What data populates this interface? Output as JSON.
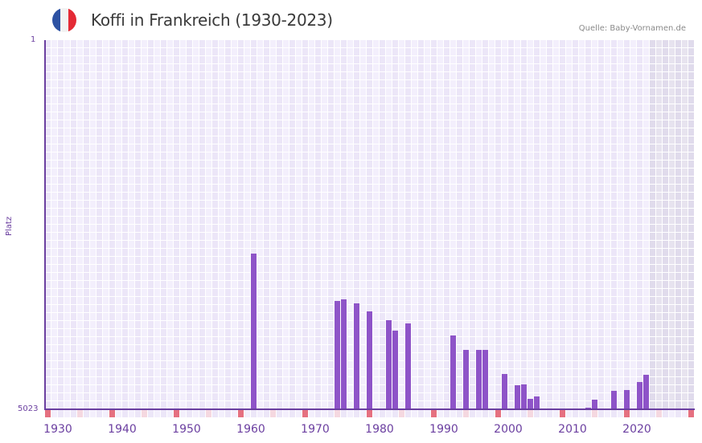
{
  "header": {
    "title": "Koffi in Frankreich (1930-2023)",
    "source": "Quelle: Baby-Vornamen.de",
    "flag_colors": [
      "#2d52a3",
      "#f2f2f2",
      "#e42a35"
    ]
  },
  "colors": {
    "bar": "#8e54c8",
    "axis": "#6b3fa0",
    "grid_a": "#f3effc",
    "grid_b": "#ece6f8",
    "future_a": "#e7e3ef",
    "future_b": "#e0dbec",
    "marker_strong": "#e57080",
    "marker_light": "#f5d8e0"
  },
  "chart_data": {
    "type": "bar",
    "title": "Koffi in Frankreich (1930-2023)",
    "xlabel": "",
    "ylabel": "Platz",
    "y_inverted": true,
    "ylim": [
      5023,
      1
    ],
    "y_tick_labels": [
      "1",
      "5023"
    ],
    "x_tick_labels": [
      "1930",
      "1940",
      "1950",
      "1960",
      "1970",
      "1980",
      "1990",
      "2000",
      "2010",
      "2020"
    ],
    "x_range": [
      1928,
      2028
    ],
    "grid": true,
    "shaded_future_from": 2022,
    "categories": [
      1960,
      1973,
      1974,
      1976,
      1978,
      1981,
      1982,
      1984,
      1991,
      1993,
      1995,
      1996,
      1999,
      2001,
      2002,
      2003,
      2004,
      2012,
      2013,
      2016,
      2018,
      2020,
      2021
    ],
    "values": [
      2902,
      3546,
      3524,
      3579,
      3688,
      3808,
      3950,
      3852,
      4016,
      4212,
      4212,
      4212,
      4540,
      4693,
      4682,
      4879,
      4846,
      5001,
      4892,
      4772,
      4761,
      4651,
      4553
    ],
    "source": "Quelle: Baby-Vornamen.de"
  },
  "axis": {
    "y_top": "1",
    "y_bottom": "5023",
    "y_title": "Platz"
  }
}
